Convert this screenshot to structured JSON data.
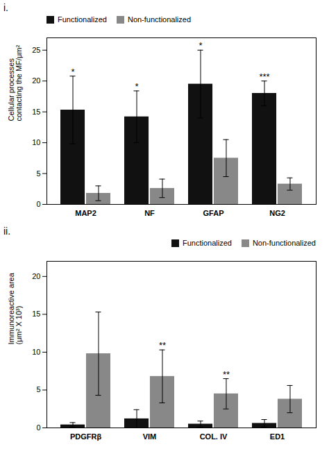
{
  "chart_data": [
    {
      "type": "bar",
      "title": "i.",
      "categories": [
        "MAP2",
        "NF",
        "GFAP",
        "NG2"
      ],
      "series": [
        {
          "name": "Functionalized",
          "color": "#111111",
          "values": [
            15.3,
            14.2,
            19.5,
            18.0
          ],
          "errors": [
            5.5,
            4.2,
            5.5,
            2.0
          ],
          "annotations": [
            "*",
            "*",
            "*",
            "***"
          ]
        },
        {
          "name": "Non-functionalized",
          "color": "#888888",
          "values": [
            1.8,
            2.6,
            7.5,
            3.3
          ],
          "errors": [
            1.2,
            1.5,
            3.0,
            1.0
          ]
        }
      ],
      "ylabel": "Cellular processes\ncontacting the MF/μm²",
      "ylim": [
        0,
        27
      ],
      "yticks": [
        0,
        5,
        10,
        15,
        20,
        25
      ],
      "legend": "upper left"
    },
    {
      "type": "bar",
      "title": "ii.",
      "categories": [
        "PDGFRβ",
        "VIM",
        "COL. IV",
        "ED1"
      ],
      "series": [
        {
          "name": "Functionalized",
          "color": "#111111",
          "values": [
            0.4,
            1.2,
            0.5,
            0.6
          ],
          "errors": [
            0.3,
            1.2,
            0.4,
            0.5
          ]
        },
        {
          "name": "Non-functionalized",
          "color": "#888888",
          "values": [
            9.8,
            6.8,
            4.5,
            3.8
          ],
          "errors": [
            5.5,
            3.5,
            2.0,
            1.8
          ],
          "annotations": [
            null,
            "**",
            "**",
            null
          ]
        }
      ],
      "ylabel": "Immunoreactive area\n(μm² X 10³)",
      "ylim": [
        0,
        22
      ],
      "yticks": [
        0,
        5,
        10,
        15,
        20
      ],
      "legend": "upper right"
    }
  ]
}
